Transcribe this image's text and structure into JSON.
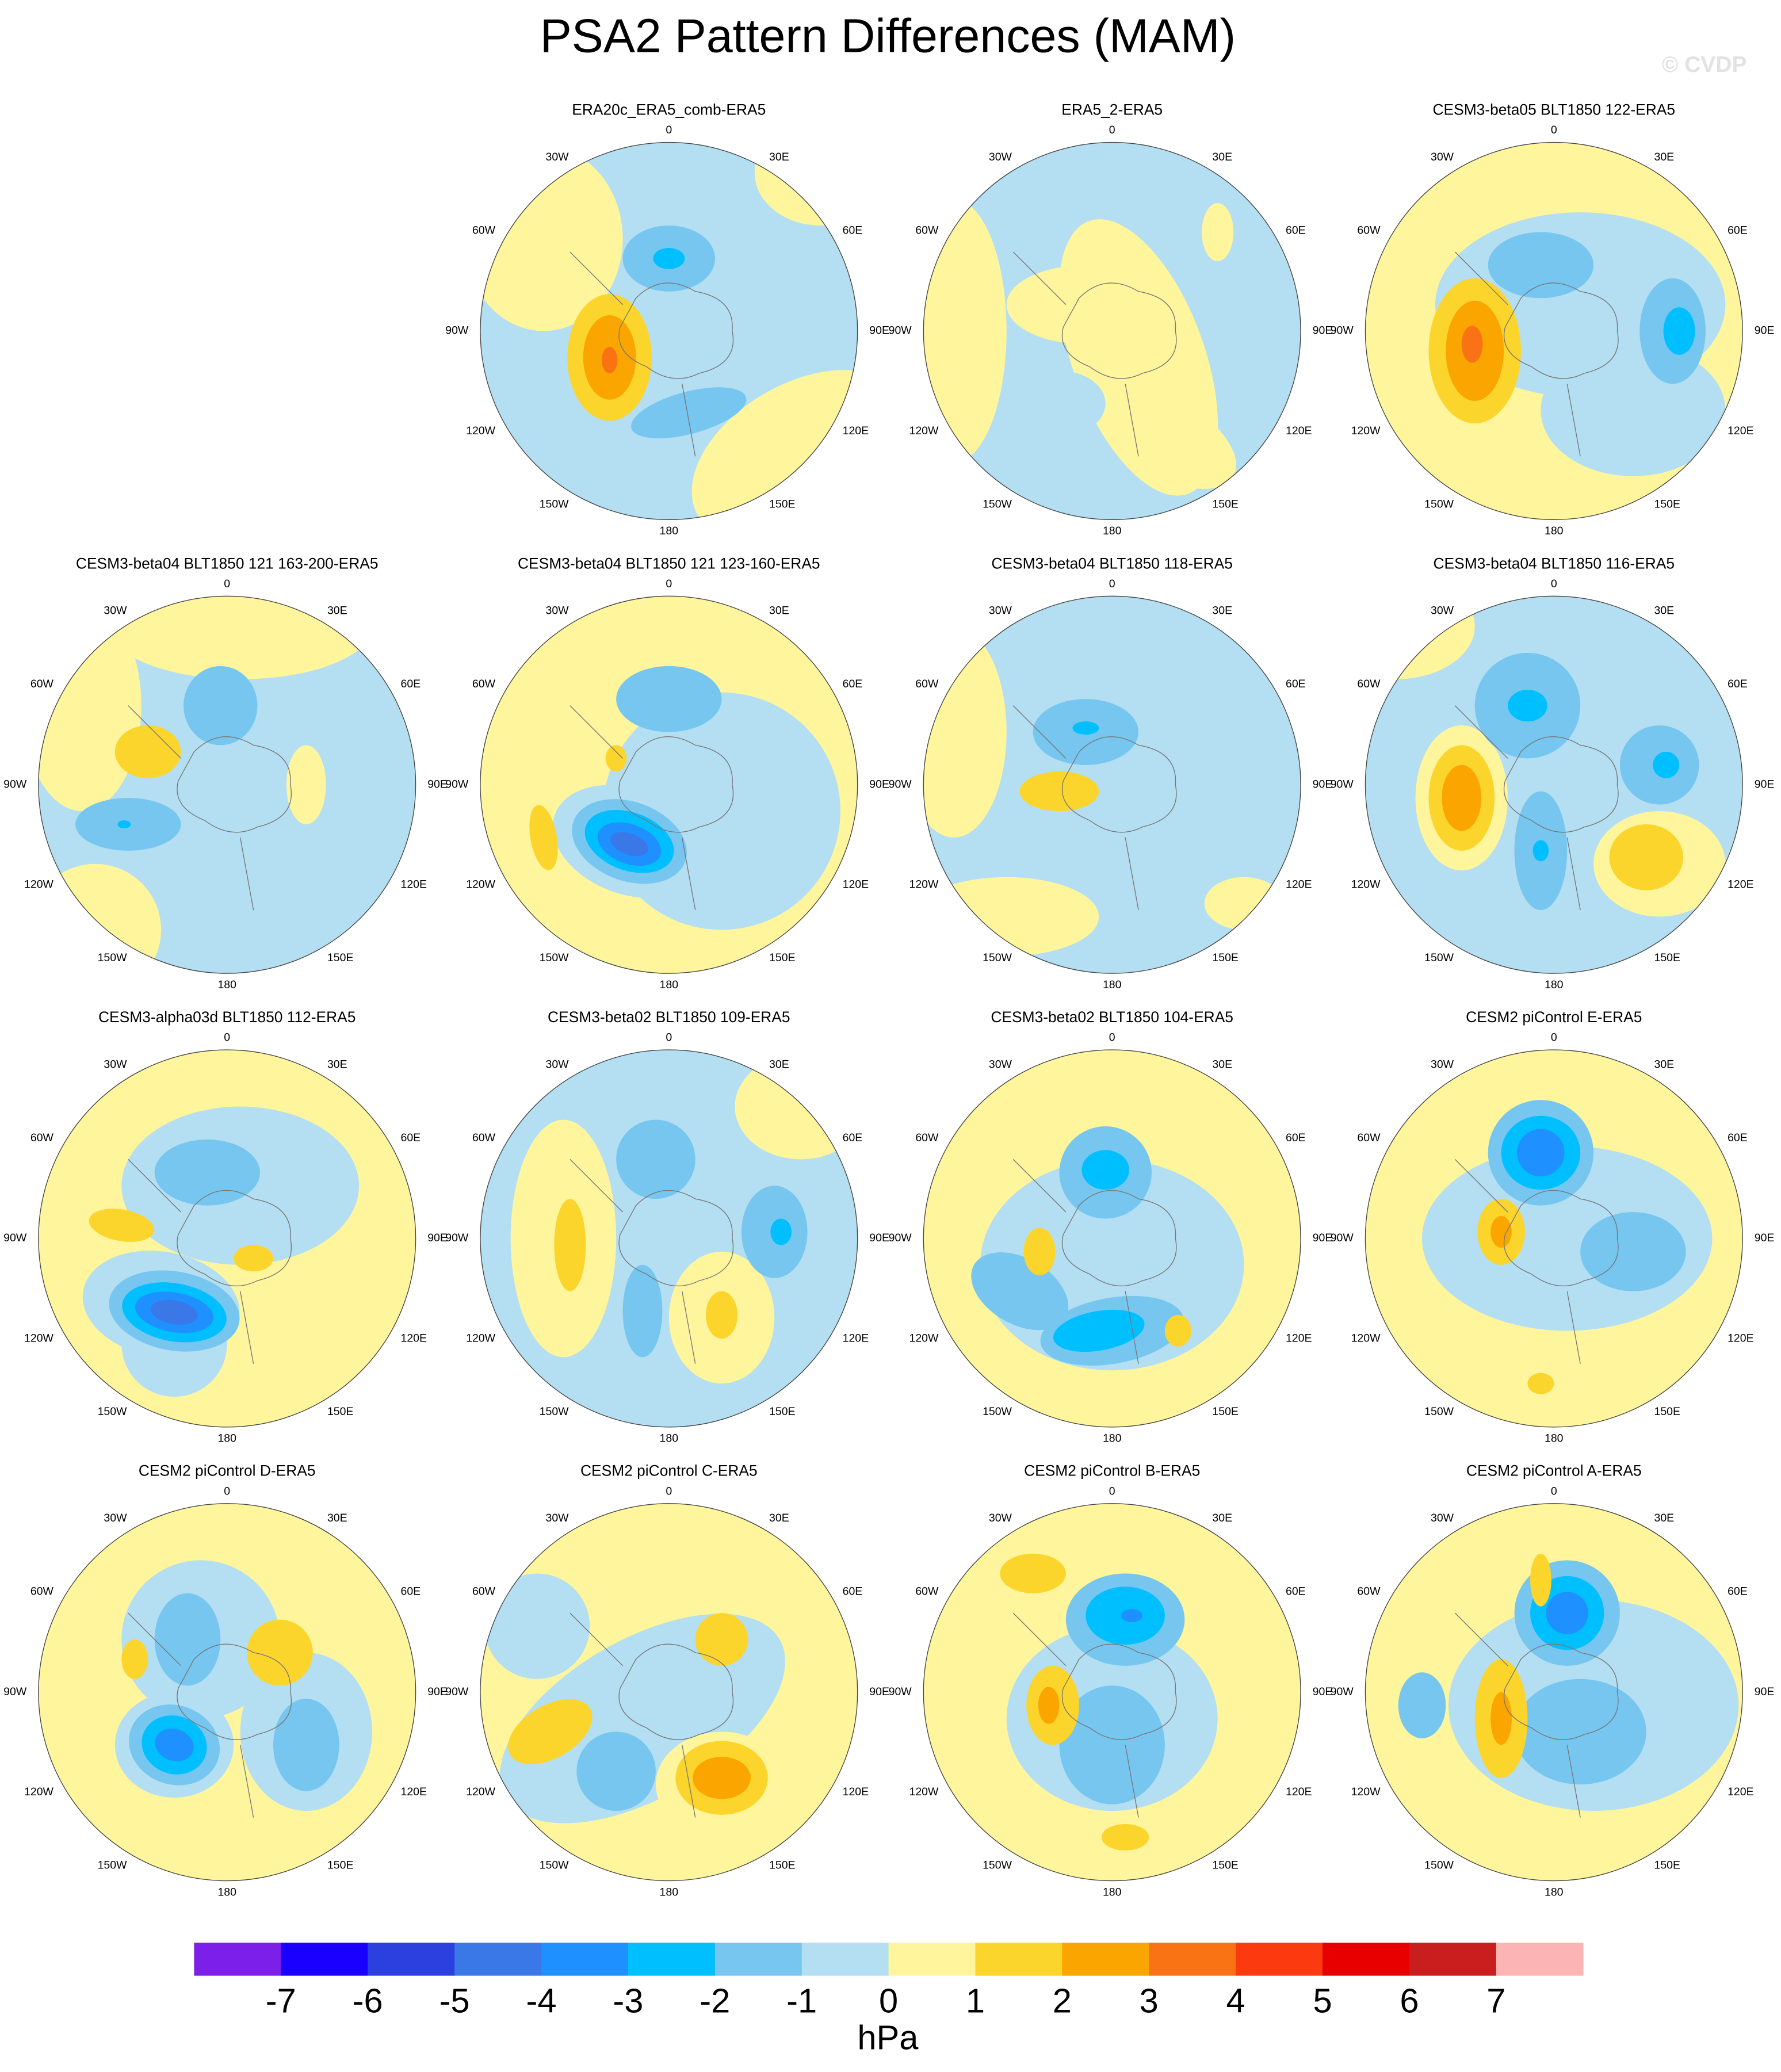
{
  "title": "PSA2 Pattern Differences (MAM)",
  "watermark": "© CVDP",
  "lon_labels": [
    "0",
    "30E",
    "60E",
    "90E",
    "120E",
    "150E",
    "180",
    "150W",
    "120W",
    "90W",
    "60W",
    "30W"
  ],
  "panels": [
    {
      "title": "ERA20c_ERA5_comb-ERA5"
    },
    {
      "title": "ERA5_2-ERA5"
    },
    {
      "title": "CESM3-beta05 BLT1850 122-ERA5"
    },
    {
      "title": "CESM3-beta04 BLT1850 121 163-200-ERA5"
    },
    {
      "title": "CESM3-beta04 BLT1850 121 123-160-ERA5"
    },
    {
      "title": "CESM3-beta04 BLT1850 118-ERA5"
    },
    {
      "title": "CESM3-beta04 BLT1850 116-ERA5"
    },
    {
      "title": "CESM3-alpha03d BLT1850 112-ERA5"
    },
    {
      "title": "CESM3-beta02 BLT1850 109-ERA5"
    },
    {
      "title": "CESM3-beta02 BLT1850 104-ERA5"
    },
    {
      "title": "CESM2 piControl E-ERA5"
    },
    {
      "title": "CESM2 piControl D-ERA5"
    },
    {
      "title": "CESM2 piControl C-ERA5"
    },
    {
      "title": "CESM2 piControl B-ERA5"
    },
    {
      "title": "CESM2 piControl A-ERA5"
    }
  ],
  "colorbar": {
    "colors": [
      "#7c1fe8",
      "#1a00ff",
      "#2c40e0",
      "#3a78e8",
      "#1e90ff",
      "#00bfff",
      "#76c6f0",
      "#b4def2",
      "#fff59d",
      "#fcd52c",
      "#fba500",
      "#f97315",
      "#fb3a10",
      "#e80000",
      "#c81e1e",
      "#fcb4b4"
    ],
    "ticks": [
      -7,
      -6,
      -5,
      -4,
      -3,
      -2,
      -1,
      0,
      1,
      2,
      3,
      4,
      5,
      6,
      7
    ],
    "units": "hPa"
  }
}
